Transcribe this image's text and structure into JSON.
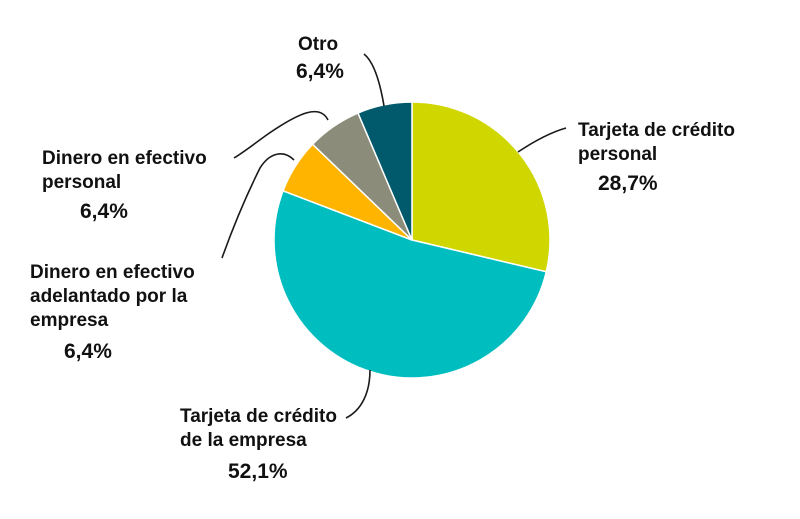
{
  "chart_data": {
    "type": "pie",
    "start_angle_deg": 0,
    "direction": "clockwise",
    "slices": [
      {
        "key": "tarjeta-personal",
        "label_lines": [
          "Tarjeta de crédito",
          "personal"
        ],
        "value_label": "28,7%",
        "value": 28.7,
        "color": "#cfd600"
      },
      {
        "key": "tarjeta-empresa",
        "label_lines": [
          "Tarjeta de crédito",
          "de la empresa"
        ],
        "value_label": "52,1%",
        "value": 52.1,
        "color": "#00bdbf"
      },
      {
        "key": "adelantado",
        "label_lines": [
          "Dinero en efectivo",
          "adelantado por la",
          "empresa"
        ],
        "value_label": "6,4%",
        "value": 6.4,
        "color": "#ffb400"
      },
      {
        "key": "efectivo-personal",
        "label_lines": [
          "Dinero en efectivo",
          "personal"
        ],
        "value_label": "6,4%",
        "value": 6.4,
        "color": "#8c8c7a"
      },
      {
        "key": "otro",
        "label_lines": [
          "Otro"
        ],
        "value_label": "6,4%",
        "value": 6.4,
        "color": "#005a6b"
      }
    ]
  }
}
